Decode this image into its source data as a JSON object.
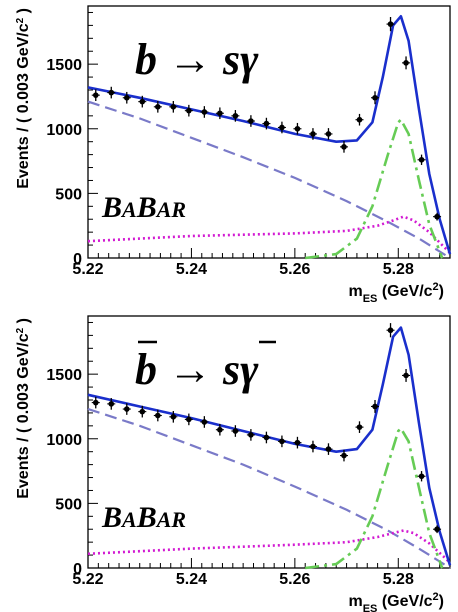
{
  "chart_data": [
    {
      "type": "scatter",
      "process": {
        "q": "b",
        "arrow": "→",
        "s": "s",
        "gamma": "γ",
        "bar": false
      },
      "experiment": {
        "b1": "B",
        "a1": "A",
        "b2": "B",
        "ar": "AR"
      },
      "xlabel": {
        "m": "m",
        "sub": "ES",
        "unit": " (GeV/c",
        "sup": "2",
        "close": ")"
      },
      "ylabel": {
        "pre": "Events / ( 0.003 GeV/c",
        "sup": "2",
        "close": " )"
      },
      "xlim": [
        5.22,
        5.29
      ],
      "ylim": [
        0,
        1950
      ],
      "xticks": [
        "5.22",
        "5.24",
        "5.26",
        "5.28"
      ],
      "yticks": [
        "0",
        "500",
        "1000",
        "1500"
      ],
      "points": {
        "x": [
          5.2215,
          5.2245,
          5.2275,
          5.2305,
          5.2335,
          5.2365,
          5.2395,
          5.2425,
          5.2455,
          5.2485,
          5.2515,
          5.2545,
          5.2575,
          5.2605,
          5.2635,
          5.2665,
          5.2695,
          5.2725,
          5.2755,
          5.2785,
          5.2815,
          5.2845,
          5.2875
        ],
        "y": [
          1260,
          1280,
          1240,
          1210,
          1170,
          1170,
          1140,
          1130,
          1120,
          1100,
          1060,
          1040,
          1010,
          1000,
          960,
          960,
          860,
          1070,
          1240,
          1810,
          1510,
          760,
          320
        ],
        "err": [
          45,
          45,
          45,
          45,
          45,
          45,
          45,
          45,
          45,
          45,
          45,
          45,
          45,
          45,
          45,
          45,
          45,
          45,
          50,
          55,
          50,
          40,
          30
        ]
      },
      "total_fit": {
        "x": [
          5.22,
          5.23,
          5.24,
          5.25,
          5.26,
          5.268,
          5.272,
          5.275,
          5.277,
          5.279,
          5.2805,
          5.282,
          5.284,
          5.286,
          5.288,
          5.29
        ],
        "y": [
          1320,
          1240,
          1150,
          1060,
          960,
          900,
          910,
          1050,
          1400,
          1800,
          1870,
          1680,
          1150,
          650,
          300,
          30
        ]
      },
      "combinatorial_bkg": {
        "x": [
          5.22,
          5.23,
          5.24,
          5.25,
          5.26,
          5.27,
          5.278,
          5.284,
          5.288,
          5.29
        ],
        "y": [
          1210,
          1080,
          930,
          780,
          620,
          440,
          280,
          150,
          50,
          0
        ]
      },
      "peaking_bkg": {
        "x": [
          5.22,
          5.23,
          5.24,
          5.25,
          5.26,
          5.27,
          5.276,
          5.279,
          5.281,
          5.283,
          5.286,
          5.289,
          5.29
        ],
        "y": [
          130,
          150,
          170,
          180,
          190,
          210,
          250,
          290,
          320,
          290,
          200,
          80,
          40
        ]
      },
      "signal": {
        "x": [
          5.262,
          5.268,
          5.272,
          5.275,
          5.278,
          5.28,
          5.2805,
          5.282,
          5.284,
          5.286,
          5.2885
        ],
        "y": [
          0,
          30,
          150,
          400,
          800,
          1050,
          1070,
          960,
          600,
          260,
          0
        ]
      }
    },
    {
      "type": "scatter",
      "process": {
        "q": "b",
        "arrow": "→",
        "s": "s",
        "gamma": "γ",
        "bar": true
      },
      "experiment": {
        "b1": "B",
        "a1": "A",
        "b2": "B",
        "ar": "AR"
      },
      "xlabel": {
        "m": "m",
        "sub": "ES",
        "unit": " (GeV/c",
        "sup": "2",
        "close": ")"
      },
      "ylabel": {
        "pre": "Events / ( 0.003 GeV/c",
        "sup": "2",
        "close": " )"
      },
      "xlim": [
        5.22,
        5.29
      ],
      "ylim": [
        0,
        1950
      ],
      "xticks": [
        "5.22",
        "5.24",
        "5.26",
        "5.28"
      ],
      "yticks": [
        "0",
        "500",
        "1000",
        "1500"
      ],
      "points": {
        "x": [
          5.2215,
          5.2245,
          5.2275,
          5.2305,
          5.2335,
          5.2365,
          5.2395,
          5.2425,
          5.2455,
          5.2485,
          5.2515,
          5.2545,
          5.2575,
          5.2605,
          5.2635,
          5.2665,
          5.2695,
          5.2725,
          5.2755,
          5.2785,
          5.2815,
          5.2845,
          5.2875
        ],
        "y": [
          1280,
          1270,
          1230,
          1210,
          1180,
          1170,
          1150,
          1130,
          1070,
          1060,
          1030,
          1010,
          980,
          970,
          940,
          920,
          870,
          1090,
          1250,
          1840,
          1490,
          710,
          300
        ],
        "err": [
          45,
          45,
          45,
          45,
          45,
          45,
          45,
          45,
          45,
          45,
          45,
          45,
          45,
          45,
          45,
          45,
          45,
          45,
          50,
          55,
          50,
          40,
          30
        ]
      },
      "total_fit": {
        "x": [
          5.22,
          5.23,
          5.24,
          5.25,
          5.26,
          5.268,
          5.272,
          5.275,
          5.277,
          5.279,
          5.2805,
          5.282,
          5.284,
          5.286,
          5.288,
          5.29
        ],
        "y": [
          1340,
          1250,
          1160,
          1060,
          960,
          900,
          920,
          1070,
          1420,
          1790,
          1860,
          1650,
          1120,
          620,
          280,
          20
        ]
      },
      "combinatorial_bkg": {
        "x": [
          5.22,
          5.23,
          5.24,
          5.25,
          5.26,
          5.27,
          5.278,
          5.284,
          5.288,
          5.29
        ],
        "y": [
          1230,
          1100,
          950,
          800,
          630,
          450,
          290,
          150,
          50,
          0
        ]
      },
      "peaking_bkg": {
        "x": [
          5.22,
          5.23,
          5.24,
          5.25,
          5.26,
          5.27,
          5.276,
          5.279,
          5.281,
          5.283,
          5.286,
          5.289,
          5.29
        ],
        "y": [
          110,
          130,
          150,
          165,
          180,
          200,
          240,
          270,
          290,
          270,
          190,
          80,
          40
        ]
      },
      "signal": {
        "x": [
          5.262,
          5.268,
          5.272,
          5.275,
          5.278,
          5.28,
          5.2805,
          5.282,
          5.284,
          5.286,
          5.2885
        ],
        "y": [
          0,
          30,
          150,
          400,
          800,
          1060,
          1080,
          980,
          620,
          270,
          0
        ]
      }
    }
  ],
  "colors": {
    "total_fit": "#1a2fcc",
    "combinatorial_bkg": "#7a7ac8",
    "peaking_bkg": "#d21ad2",
    "signal": "#66cc55",
    "points": "#000000"
  }
}
